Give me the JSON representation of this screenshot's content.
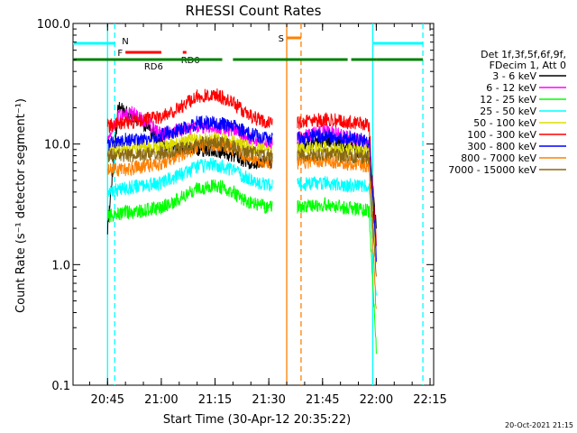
{
  "chart_data": {
    "type": "line",
    "title": "RHESSI Count Rates",
    "xlabel": "Start Time (30-Apr-12 20:35:22)",
    "ylabel": "Count Rate (s⁻¹ detector segment⁻¹)",
    "x_tick_labels": [
      "20:45",
      "21:00",
      "21:15",
      "21:30",
      "21:45",
      "22:00",
      "22:15"
    ],
    "y_tick_labels": [
      "0.1",
      "1.0",
      "10.0",
      "100.0"
    ],
    "yscale": "log",
    "xlim": [
      "20:35:22",
      "22:16"
    ],
    "ylim": [
      0.1,
      100
    ],
    "grid": false,
    "legend_position": "right",
    "legend_header": [
      "Det 1f,3f,5f,6f,9f,",
      "FDecim 1, Att 0"
    ],
    "series": [
      {
        "name": "3 - 6 keV",
        "color": "#000000",
        "points": [
          [
            "20:45",
            "2.0"
          ],
          [
            "20:48",
            "20"
          ],
          [
            "20:52",
            "17"
          ],
          [
            "20:56",
            "14"
          ],
          [
            "21:00",
            "10"
          ],
          [
            "21:05",
            "9"
          ],
          [
            "21:10",
            "9"
          ],
          [
            "21:15",
            "9"
          ],
          [
            "21:20",
            "8"
          ],
          [
            "21:25",
            "7"
          ],
          [
            "21:30",
            "7"
          ],
          [
            "21:38",
            "9"
          ],
          [
            "21:42",
            "10"
          ],
          [
            "21:46",
            "11"
          ],
          [
            "21:50",
            "10"
          ],
          [
            "21:54",
            "9"
          ],
          [
            "21:58",
            "8"
          ],
          [
            "22:00",
            "2"
          ]
        ]
      },
      {
        "name": "6 - 12 keV",
        "color": "#ff00ff",
        "points": [
          [
            "20:45",
            "11"
          ],
          [
            "20:48",
            "17"
          ],
          [
            "20:52",
            "18"
          ],
          [
            "20:56",
            "15"
          ],
          [
            "21:00",
            "12"
          ],
          [
            "21:05",
            "13"
          ],
          [
            "21:10",
            "14"
          ],
          [
            "21:15",
            "14"
          ],
          [
            "21:20",
            "13"
          ],
          [
            "21:25",
            "11"
          ],
          [
            "21:30",
            "10"
          ],
          [
            "21:38",
            "11"
          ],
          [
            "21:42",
            "12"
          ],
          [
            "21:46",
            "13"
          ],
          [
            "21:50",
            "12"
          ],
          [
            "21:54",
            "11"
          ],
          [
            "21:58",
            "10"
          ],
          [
            "22:00",
            "1"
          ]
        ]
      },
      {
        "name": "12 - 25 keV",
        "color": "#00ff00",
        "points": [
          [
            "20:45",
            "2.5"
          ],
          [
            "20:50",
            "2.7"
          ],
          [
            "20:55",
            "2.8"
          ],
          [
            "21:00",
            "3"
          ],
          [
            "21:05",
            "3.5"
          ],
          [
            "21:10",
            "4.3"
          ],
          [
            "21:15",
            "4.6"
          ],
          [
            "21:20",
            "4"
          ],
          [
            "21:25",
            "3.2"
          ],
          [
            "21:30",
            "3"
          ],
          [
            "21:38",
            "3"
          ],
          [
            "21:42",
            "3.1"
          ],
          [
            "21:46",
            "3.2"
          ],
          [
            "21:50",
            "3"
          ],
          [
            "21:54",
            "2.9"
          ],
          [
            "21:58",
            "2.8"
          ],
          [
            "22:00",
            "0.2"
          ]
        ]
      },
      {
        "name": "25 - 50 keV",
        "color": "#00ffff",
        "points": [
          [
            "20:45",
            "4.0"
          ],
          [
            "20:50",
            "4.3"
          ],
          [
            "20:55",
            "4.5"
          ],
          [
            "21:00",
            "4.8"
          ],
          [
            "21:05",
            "5.5"
          ],
          [
            "21:10",
            "6.5"
          ],
          [
            "21:15",
            "6.8"
          ],
          [
            "21:20",
            "6"
          ],
          [
            "21:25",
            "5"
          ],
          [
            "21:30",
            "4.6"
          ],
          [
            "21:38",
            "4.6"
          ],
          [
            "21:42",
            "4.7"
          ],
          [
            "21:46",
            "4.8"
          ],
          [
            "21:50",
            "4.6"
          ],
          [
            "21:54",
            "4.5"
          ],
          [
            "21:58",
            "4.4"
          ],
          [
            "22:00",
            "0.5"
          ]
        ]
      },
      {
        "name": "50 - 100 keV",
        "color": "#dddd00",
        "points": [
          [
            "20:45",
            "9"
          ],
          [
            "20:50",
            "9"
          ],
          [
            "20:55",
            "9.3"
          ],
          [
            "21:00",
            "9.5"
          ],
          [
            "21:05",
            "10"
          ],
          [
            "21:10",
            "11"
          ],
          [
            "21:15",
            "11"
          ],
          [
            "21:20",
            "10.5"
          ],
          [
            "21:25",
            "9.5"
          ],
          [
            "21:30",
            "9"
          ],
          [
            "21:38",
            "9"
          ],
          [
            "21:42",
            "9.2"
          ],
          [
            "21:46",
            "9.3"
          ],
          [
            "21:50",
            "9"
          ],
          [
            "21:54",
            "9"
          ],
          [
            "21:58",
            "8.8"
          ],
          [
            "22:00",
            "1"
          ]
        ]
      },
      {
        "name": "100 - 300 keV",
        "color": "#ff0000",
        "points": [
          [
            "20:45",
            "14"
          ],
          [
            "20:50",
            "15"
          ],
          [
            "20:55",
            "16"
          ],
          [
            "21:00",
            "17"
          ],
          [
            "21:05",
            "20"
          ],
          [
            "21:10",
            "25"
          ],
          [
            "21:15",
            "26"
          ],
          [
            "21:20",
            "22"
          ],
          [
            "21:25",
            "17"
          ],
          [
            "21:30",
            "15"
          ],
          [
            "21:38",
            "15"
          ],
          [
            "21:42",
            "15.5"
          ],
          [
            "21:46",
            "16"
          ],
          [
            "21:50",
            "15.5"
          ],
          [
            "21:54",
            "15"
          ],
          [
            "21:58",
            "14.5"
          ],
          [
            "22:00",
            "1.5"
          ]
        ]
      },
      {
        "name": "300 - 800 keV",
        "color": "#0000ff",
        "points": [
          [
            "20:45",
            "10"
          ],
          [
            "20:50",
            "11"
          ],
          [
            "20:55",
            "11"
          ],
          [
            "21:00",
            "12"
          ],
          [
            "21:05",
            "13"
          ],
          [
            "21:10",
            "15"
          ],
          [
            "21:15",
            "15"
          ],
          [
            "21:20",
            "14"
          ],
          [
            "21:25",
            "12"
          ],
          [
            "21:30",
            "11"
          ],
          [
            "21:38",
            "11"
          ],
          [
            "21:42",
            "11.5"
          ],
          [
            "21:46",
            "12"
          ],
          [
            "21:50",
            "11.5"
          ],
          [
            "21:54",
            "11"
          ],
          [
            "21:58",
            "10.5"
          ],
          [
            "22:00",
            "1.2"
          ]
        ]
      },
      {
        "name": "800 - 7000 keV",
        "color": "#ff8000",
        "points": [
          [
            "20:45",
            "6"
          ],
          [
            "20:50",
            "6.2"
          ],
          [
            "20:55",
            "6.5"
          ],
          [
            "21:00",
            "7"
          ],
          [
            "21:05",
            "8"
          ],
          [
            "21:10",
            "9.5"
          ],
          [
            "21:15",
            "10"
          ],
          [
            "21:20",
            "9"
          ],
          [
            "21:25",
            "7.5"
          ],
          [
            "21:30",
            "7"
          ],
          [
            "21:38",
            "7"
          ],
          [
            "21:42",
            "7.2"
          ],
          [
            "21:46",
            "7.3"
          ],
          [
            "21:50",
            "7"
          ],
          [
            "21:54",
            "6.8"
          ],
          [
            "21:58",
            "6.6"
          ],
          [
            "22:00",
            "0.4"
          ]
        ]
      },
      {
        "name": "7000 - 15000 keV",
        "color": "#8b6914",
        "points": [
          [
            "20:45",
            "8"
          ],
          [
            "20:50",
            "8"
          ],
          [
            "20:55",
            "8.2"
          ],
          [
            "21:00",
            "8.5"
          ],
          [
            "21:05",
            "9"
          ],
          [
            "21:10",
            "10"
          ],
          [
            "21:15",
            "10.5"
          ],
          [
            "21:20",
            "9.5"
          ],
          [
            "21:25",
            "8.5"
          ],
          [
            "21:30",
            "8"
          ],
          [
            "21:38",
            "8"
          ],
          [
            "21:42",
            "8.2"
          ],
          [
            "21:46",
            "8.3"
          ],
          [
            "21:50",
            "8"
          ],
          [
            "21:54",
            "7.9"
          ],
          [
            "21:58",
            "7.8"
          ],
          [
            "22:00",
            "0.8"
          ]
        ]
      }
    ],
    "flags": [
      {
        "label": "N",
        "color": "#00ffff",
        "segments": [
          [
            "20:35:22",
            "20:47"
          ],
          [
            "21:59",
            "22:13"
          ]
        ]
      },
      {
        "label": "F",
        "color": "#ff0000",
        "segments": [
          [
            "20:50",
            "21:00"
          ]
        ]
      },
      {
        "label": "S",
        "color": "#ff8000",
        "segments": [
          [
            "21:35",
            "21:39"
          ]
        ]
      },
      {
        "label": "RD0",
        "color": "#ff0000",
        "segments": [
          [
            "21:06",
            "21:07"
          ]
        ]
      },
      {
        "label": "RD6",
        "color": "#008000",
        "segments": [
          [
            "20:35:22",
            "21:02"
          ],
          [
            "21:01",
            "21:17"
          ],
          [
            "21:20",
            "21:52"
          ],
          [
            "21:53",
            "22:00"
          ],
          [
            "22:00",
            "22:13"
          ]
        ]
      }
    ],
    "vertical_markers": [
      {
        "time": "20:45",
        "color": "#00ffff",
        "style": "solid"
      },
      {
        "time": "20:47",
        "color": "#00ffff",
        "style": "dashed"
      },
      {
        "time": "21:35",
        "color": "#ff8000",
        "style": "solid"
      },
      {
        "time": "21:39",
        "color": "#ff8000",
        "style": "dashed"
      },
      {
        "time": "21:59",
        "color": "#00ffff",
        "style": "solid"
      },
      {
        "time": "22:13",
        "color": "#00ffff",
        "style": "dashed"
      }
    ],
    "timestamp": "20-Oct-2021 21:15"
  }
}
